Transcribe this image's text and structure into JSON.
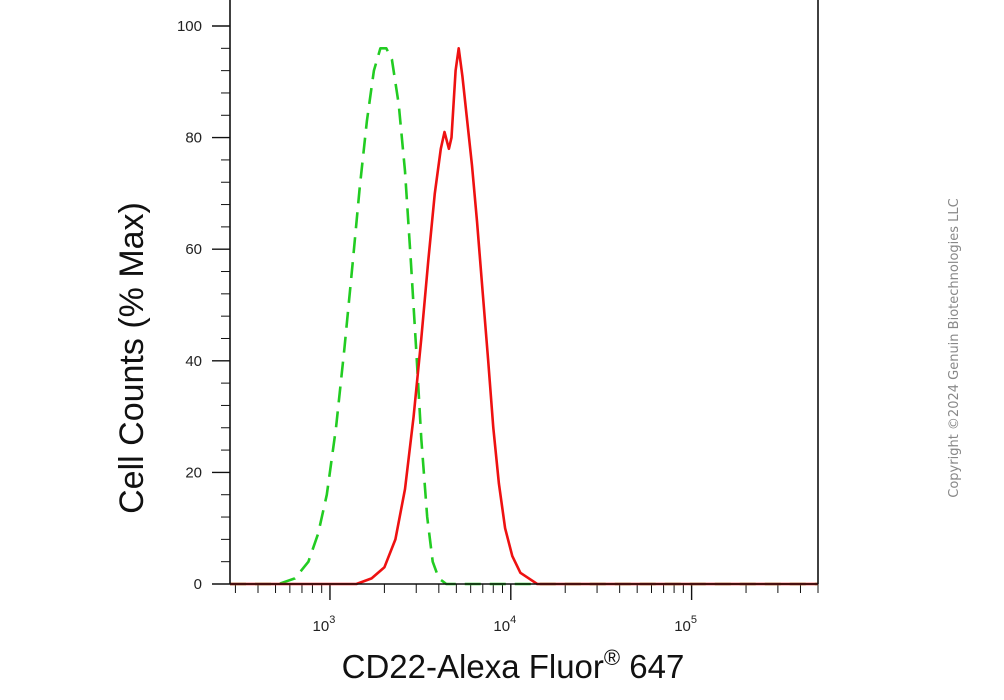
{
  "chart_data": {
    "type": "line",
    "xlabel": "CD22-Alexa Fluor",
    "xlabel_superscript": "®",
    "xlabel_suffix": " 647",
    "ylabel": "Cell Counts (% Max)",
    "x_scale": "log",
    "xlim": [
      280,
      500000
    ],
    "ylim": [
      0,
      100
    ],
    "y_ticks": [
      0,
      20,
      40,
      60,
      80,
      100
    ],
    "x_major_ticks": [
      {
        "value": 1000,
        "base": "10",
        "exp": "3"
      },
      {
        "value": 10000,
        "base": "10",
        "exp": "4"
      },
      {
        "value": 100000,
        "base": "10",
        "exp": "5"
      }
    ],
    "grid": false,
    "series": [
      {
        "color": "#22cc22",
        "style": "dashed",
        "points": [
          [
            280,
            0
          ],
          [
            400,
            0
          ],
          [
            520,
            0
          ],
          [
            640,
            1
          ],
          [
            760,
            4
          ],
          [
            860,
            9
          ],
          [
            960,
            16
          ],
          [
            1080,
            28
          ],
          [
            1200,
            42
          ],
          [
            1330,
            57
          ],
          [
            1460,
            71
          ],
          [
            1600,
            83
          ],
          [
            1750,
            92
          ],
          [
            1900,
            96
          ],
          [
            2050,
            96
          ],
          [
            2200,
            94
          ],
          [
            2400,
            86
          ],
          [
            2600,
            74
          ],
          [
            2800,
            58
          ],
          [
            3000,
            42
          ],
          [
            3200,
            26
          ],
          [
            3450,
            12
          ],
          [
            3700,
            4
          ],
          [
            4000,
            1
          ],
          [
            4400,
            0
          ],
          [
            20000,
            0
          ],
          [
            100000,
            0
          ],
          [
            500000,
            0
          ]
        ]
      },
      {
        "color": "#ee1111",
        "style": "solid",
        "points": [
          [
            280,
            0
          ],
          [
            1000,
            0
          ],
          [
            1400,
            0
          ],
          [
            1700,
            1
          ],
          [
            2000,
            3
          ],
          [
            2300,
            8
          ],
          [
            2600,
            17
          ],
          [
            2900,
            30
          ],
          [
            3200,
            44
          ],
          [
            3500,
            58
          ],
          [
            3800,
            70
          ],
          [
            4100,
            78
          ],
          [
            4300,
            81
          ],
          [
            4550,
            78
          ],
          [
            4700,
            80
          ],
          [
            4950,
            92
          ],
          [
            5150,
            96
          ],
          [
            5400,
            91
          ],
          [
            5700,
            84
          ],
          [
            6100,
            75
          ],
          [
            6500,
            65
          ],
          [
            7000,
            52
          ],
          [
            7500,
            40
          ],
          [
            8000,
            28
          ],
          [
            8600,
            18
          ],
          [
            9300,
            10
          ],
          [
            10200,
            5
          ],
          [
            11300,
            2
          ],
          [
            12600,
            1
          ],
          [
            14000,
            0
          ],
          [
            100000,
            0
          ],
          [
            500000,
            0
          ]
        ]
      }
    ]
  },
  "copyright": "Copyright ©2024 Genuin Biotechnologies LLC"
}
